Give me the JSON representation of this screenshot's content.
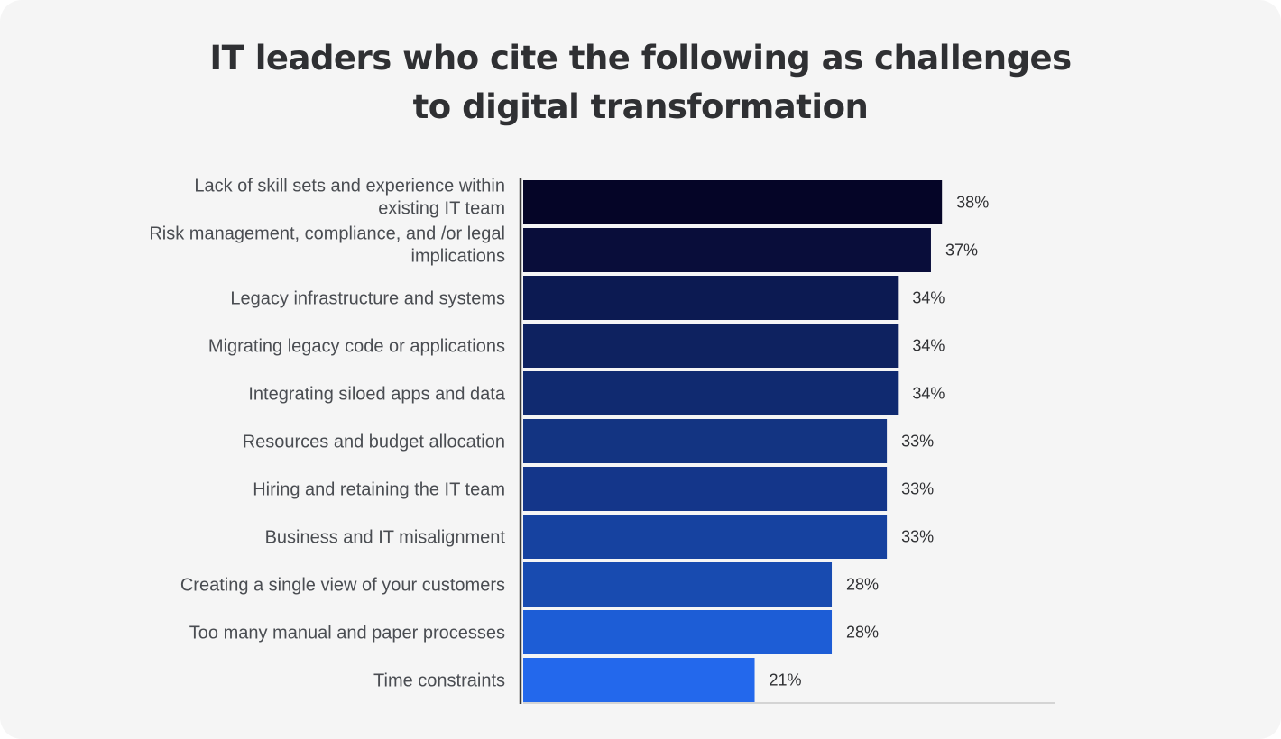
{
  "chart_data": {
    "type": "bar",
    "orientation": "horizontal",
    "title": "IT leaders who cite the following as challenges to digital transformation",
    "title_lines": [
      "IT leaders who cite the following as challenges",
      "to digital transformation"
    ],
    "categories": [
      [
        "Lack of skill sets and experience within",
        "existing IT team"
      ],
      [
        "Risk management, compliance, and /or legal",
        "implications"
      ],
      [
        "Legacy infrastructure and systems"
      ],
      [
        "Migrating legacy code or applications"
      ],
      [
        "Integrating siloed apps and data"
      ],
      [
        "Resources and budget allocation"
      ],
      [
        "Hiring and retaining the IT team"
      ],
      [
        "Business and IT misalignment"
      ],
      [
        "Creating a single view of your customers"
      ],
      [
        "Too many manual and paper processes"
      ],
      [
        "Time constraints"
      ]
    ],
    "values": [
      38,
      37,
      34,
      34,
      34,
      33,
      33,
      33,
      28,
      28,
      21
    ],
    "value_labels": [
      "38%",
      "37%",
      "34%",
      "34%",
      "34%",
      "33%",
      "33%",
      "33%",
      "28%",
      "28%",
      "21%"
    ],
    "unit": "%",
    "xlim": [
      0,
      48.3
    ],
    "grid": false,
    "colors": [
      "#050527",
      "#090d3a",
      "#0c1a52",
      "#0e2260",
      "#102a70",
      "#133482",
      "#14368a",
      "#1642a0",
      "#184bb0",
      "#1d5dd6",
      "#2368ec"
    ]
  }
}
